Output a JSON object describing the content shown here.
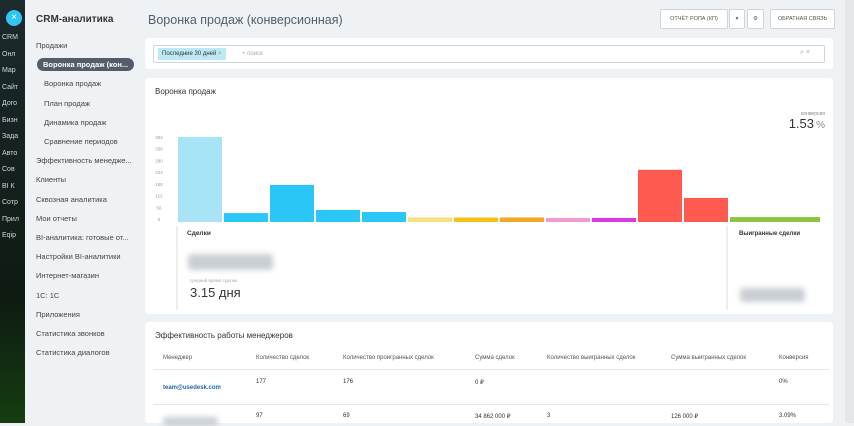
{
  "rail": [
    "CRM",
    "Онл",
    "Мар",
    "Сайт",
    "Дого",
    "Бизн",
    "Зада",
    "Авто",
    "Сов",
    "BI К",
    "Сотр",
    "Прил",
    "Eqip"
  ],
  "sidebar": {
    "title": "CRM-аналитика",
    "items": [
      {
        "label": "Продажи",
        "level": 0
      },
      {
        "label": "Воронка продаж (кон...",
        "level": 1,
        "active": true
      },
      {
        "label": "Воронка продаж",
        "level": 2
      },
      {
        "label": "План продаж",
        "level": 2
      },
      {
        "label": "Динамика продаж",
        "level": 2
      },
      {
        "label": "Сравнение периодов",
        "level": 2
      },
      {
        "label": "Эффективность менедже...",
        "level": 0
      },
      {
        "label": "Клиенты",
        "level": 0
      },
      {
        "label": "Сквозная аналитика",
        "level": 0
      },
      {
        "label": "Мои отчеты",
        "level": 0
      },
      {
        "label": "BI-аналитика: готовые от...",
        "level": 0
      },
      {
        "label": "Настройки BI-аналитики",
        "level": 0
      },
      {
        "label": "Интернет-магазин",
        "level": 0
      },
      {
        "label": "1С: 1С",
        "level": 0
      },
      {
        "label": "Приложения",
        "level": 0
      },
      {
        "label": "Статистика звонков",
        "level": 0
      },
      {
        "label": "Статистика диалогов",
        "level": 0
      }
    ]
  },
  "header": {
    "title": "Воронка продаж (конверсионная)",
    "report_button": "ОТЧЁТ РОПА (КП)",
    "feedback_button": "ОБРАТНАЯ СВЯЗЬ"
  },
  "filter": {
    "chip": "Последние 30 дней",
    "placeholder": "+ поиск"
  },
  "chart_data": {
    "type": "bar",
    "title": "Воронка продаж",
    "values": [
      395,
      33,
      167,
      48,
      38,
      12,
      12,
      12,
      10,
      10,
      239,
      105,
      14
    ],
    "colors": [
      "#a9e3f6",
      "#2ac6f5",
      "#2ac6f5",
      "#2ac6f5",
      "#2ac6f5",
      "#f6e27c",
      "#f5c118",
      "#f5a623",
      "#f29bd2",
      "#d83bd8",
      "#ff5a50",
      "#ff5a50",
      "#8cc63f"
    ],
    "ylim": [
      0,
      400
    ],
    "yticks": [
      0,
      56,
      112,
      168,
      224,
      280,
      336,
      392
    ]
  },
  "conversion": {
    "label": "конверсия",
    "value": "1.53",
    "unit": "%"
  },
  "deals": {
    "label": "Сделки",
    "avg_label": "средний время сделки",
    "avg_value": "3.15 дня",
    "won_label": "Выигранные сделки"
  },
  "table": {
    "title": "Эффективность работы менеджеров",
    "headers": [
      "Менеджер",
      "Количество сделок",
      "Количество проигранных сделок",
      "Сумма сделок",
      "Количество выигранных сделок",
      "Сумма выигранных сделок",
      "Конверсия"
    ],
    "rows": [
      [
        "team@usedesk.com",
        "177",
        "176",
        "0 ₽",
        null,
        null,
        "0%"
      ],
      [
        null,
        "97",
        "69",
        "34 862 000 ₽",
        "3",
        "126 000 ₽",
        "3.09%"
      ]
    ]
  }
}
